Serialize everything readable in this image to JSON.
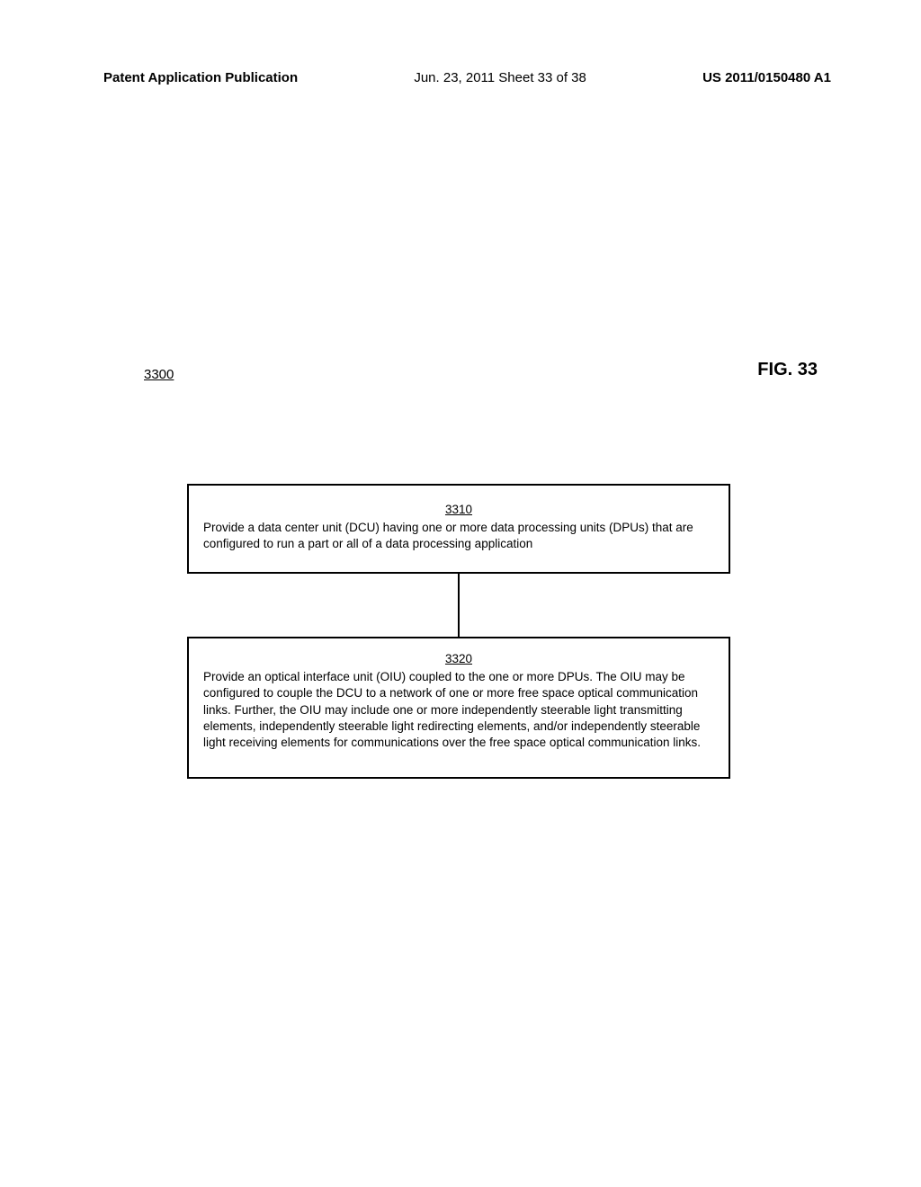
{
  "header": {
    "left": "Patent Application Publication",
    "center": "Jun. 23, 2011  Sheet 33 of 38",
    "right": "US 2011/0150480 A1"
  },
  "figure": {
    "label": "FIG. 33",
    "number": "3300"
  },
  "boxes": {
    "b1": {
      "num": "3310",
      "text": "Provide a data center unit (DCU) having one or more data processing units (DPUs) that are configured to run a part or all of a data processing application"
    },
    "b2": {
      "num": "3320",
      "text": "Provide an optical interface unit (OIU) coupled to the one or more DPUs.  The OIU may be configured to couple the DCU to a network of one or more free space optical communication links. Further, the OIU may include one or more independently steerable light transmitting elements, independently steerable light redirecting elements, and/or independently steerable light receiving elements for communications over the free space optical communication links."
    }
  }
}
